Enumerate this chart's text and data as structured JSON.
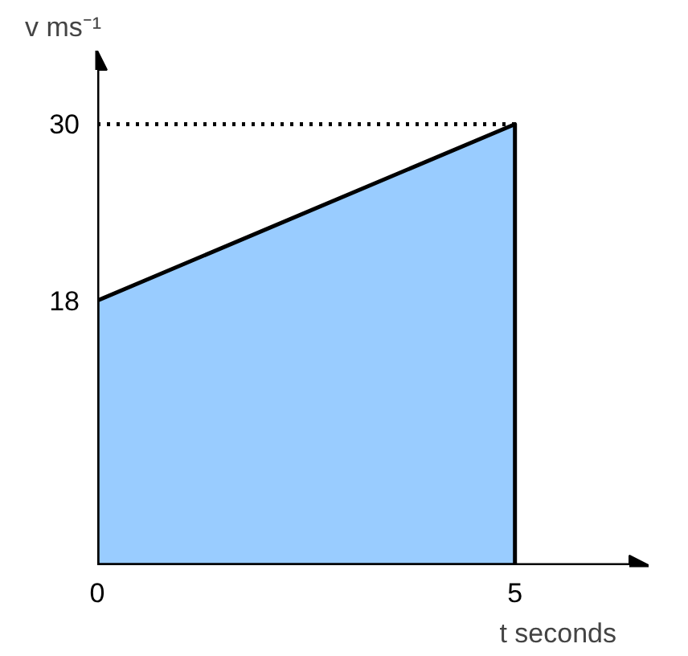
{
  "chart_data": {
    "type": "area",
    "x": [
      0,
      5
    ],
    "series": [
      {
        "color": "#99ccff",
        "values": [
          18,
          30
        ]
      }
    ],
    "xlabel": "t seconds",
    "ylabel": "v ms⁻¹",
    "xlim": [
      0,
      6.6
    ],
    "ylim": [
      0,
      35
    ],
    "xticks": [
      0,
      5
    ],
    "yticks": [
      18,
      30
    ],
    "ref_lines": [
      {
        "axis": "y",
        "value": 30,
        "line_style": "dotted"
      }
    ],
    "grid": false
  }
}
